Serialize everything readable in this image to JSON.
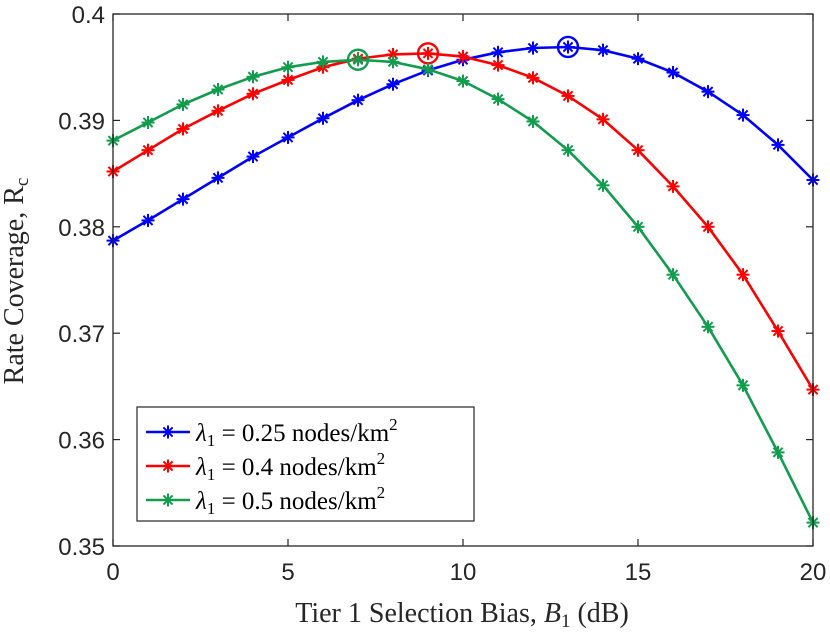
{
  "chart_data": {
    "type": "line",
    "title": "",
    "xlabel": "Tier 1 Selection Bias, B₁ (dB)",
    "ylabel": "Rate Coverage, Rᴄ",
    "xlim": [
      0,
      20
    ],
    "ylim": [
      0.35,
      0.4
    ],
    "xticks": [
      0,
      5,
      10,
      15,
      20
    ],
    "yticks": [
      0.35,
      0.36,
      0.37,
      0.38,
      0.39,
      0.4
    ],
    "xtick_labels": [
      "0",
      "5",
      "10",
      "15",
      "20"
    ],
    "ytick_labels": [
      "0.35",
      "0.36",
      "0.37",
      "0.38",
      "0.39",
      "0.4"
    ],
    "grid": false,
    "legend_position": "bottom-left",
    "x": [
      0,
      1,
      2,
      3,
      4,
      5,
      6,
      7,
      8,
      9,
      10,
      11,
      12,
      13,
      14,
      15,
      16,
      17,
      18,
      19,
      20
    ],
    "series": [
      {
        "name": "λ₁ = 0.25 nodes/km²",
        "color": "#0000ff",
        "values": [
          0.3787,
          0.3806,
          0.3826,
          0.3846,
          0.3866,
          0.3884,
          0.3902,
          0.3919,
          0.3934,
          0.3947,
          0.3957,
          0.3964,
          0.3968,
          0.3969,
          0.3966,
          0.3958,
          0.3945,
          0.3927,
          0.3905,
          0.3877,
          0.3844
        ],
        "max_marker": {
          "x": 13,
          "y": 0.3969
        }
      },
      {
        "name": "λ₁ = 0.4 nodes/km²",
        "color": "#ff0000",
        "values": [
          0.3852,
          0.3872,
          0.3892,
          0.3909,
          0.3925,
          0.3938,
          0.395,
          0.3958,
          0.3962,
          0.3963,
          0.396,
          0.3952,
          0.394,
          0.3923,
          0.3901,
          0.3872,
          0.3838,
          0.38,
          0.3755,
          0.3702,
          0.3647
        ],
        "max_marker": {
          "x": 9,
          "y": 0.3963
        }
      },
      {
        "name": "λ₁ = 0.5 nodes/km²",
        "color": "#129c4e",
        "values": [
          0.3881,
          0.3898,
          0.3915,
          0.3929,
          0.3941,
          0.395,
          0.3955,
          0.3957,
          0.3955,
          0.3948,
          0.3937,
          0.392,
          0.3899,
          0.3872,
          0.3839,
          0.38,
          0.3755,
          0.3706,
          0.3651,
          0.3588,
          0.3522
        ],
        "max_marker": {
          "x": 7,
          "y": 0.3957
        }
      }
    ]
  },
  "legend": {
    "items": [
      {
        "prefix": "λ",
        "sub": "1",
        "mid": " = 0.25 nodes/km",
        "sup": "2"
      },
      {
        "prefix": "λ",
        "sub": "1",
        "mid": " = 0.4 nodes/km",
        "sup": "2"
      },
      {
        "prefix": "λ",
        "sub": "1",
        "mid": " = 0.5 nodes/km",
        "sup": "2"
      }
    ]
  },
  "xlabel_parts": {
    "main": "Tier 1 Selection Bias, ",
    "var": "B",
    "sub": "1",
    "unit": " (dB)"
  },
  "ylabel_parts": {
    "main": "Rate Coverage, R",
    "sub": "c"
  }
}
